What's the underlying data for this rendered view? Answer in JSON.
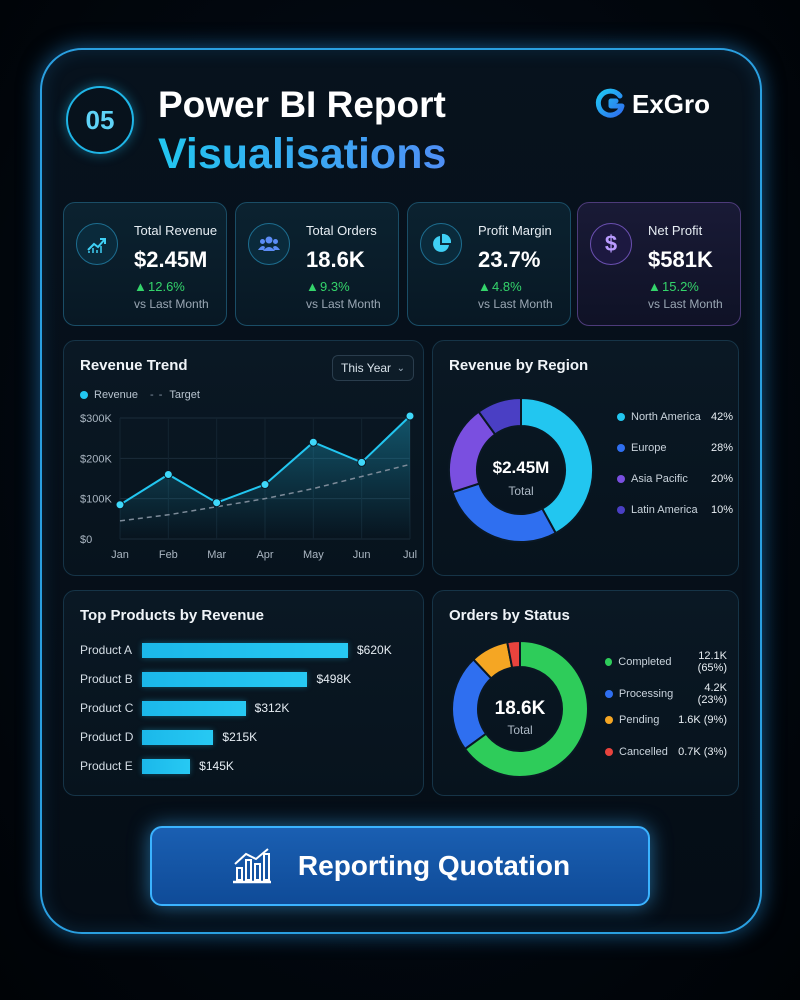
{
  "header": {
    "badge": "05",
    "title_line1": "Power BI Report",
    "title_line2": "Visualisations",
    "brand": "ExGro"
  },
  "kpis": [
    {
      "label": "Total Revenue",
      "value": "$2.45M",
      "delta": "12.6%",
      "sub": "vs Last Month",
      "icon": "trending-up-icon"
    },
    {
      "label": "Total Orders",
      "value": "18.6K",
      "delta": "9.3%",
      "sub": "vs Last Month",
      "icon": "users-icon"
    },
    {
      "label": "Profit Margin",
      "value": "23.7%",
      "delta": "4.8%",
      "sub": "vs Last Month",
      "icon": "pie-chart-icon"
    },
    {
      "label": "Net Profit",
      "value": "$581K",
      "delta": "15.2%",
      "sub": "vs Last Month",
      "icon": "dollar-icon"
    }
  ],
  "revenue_trend": {
    "title": "Revenue Trend",
    "period_select": "This Year",
    "legend_revenue": "Revenue",
    "legend_target": "Target",
    "y_ticks": [
      "$300K",
      "$200K",
      "$100K",
      "$0"
    ],
    "x_ticks": [
      "Jan",
      "Feb",
      "Mar",
      "Apr",
      "May",
      "Jun",
      "Jul"
    ]
  },
  "region": {
    "title": "Revenue by Region",
    "center_value": "$2.45M",
    "center_label": "Total",
    "items": [
      {
        "name": "North America",
        "pct": "42%"
      },
      {
        "name": "Europe",
        "pct": "28%"
      },
      {
        "name": "Asia Pacific",
        "pct": "20%"
      },
      {
        "name": "Latin America",
        "pct": "10%"
      }
    ]
  },
  "top_products": {
    "title": "Top Products by Revenue",
    "items": [
      {
        "name": "Product A",
        "value": "$620K"
      },
      {
        "name": "Product B",
        "value": "$498K"
      },
      {
        "name": "Product C",
        "value": "$312K"
      },
      {
        "name": "Product D",
        "value": "$215K"
      },
      {
        "name": "Product E",
        "value": "$145K"
      }
    ]
  },
  "orders_status": {
    "title": "Orders by Status",
    "center_value": "18.6K",
    "center_label": "Total",
    "items": [
      {
        "name": "Completed",
        "value": "12.1K (65%)"
      },
      {
        "name": "Processing",
        "value": "4.2K (23%)"
      },
      {
        "name": "Pending",
        "value": "1.6K (9%)"
      },
      {
        "name": "Cancelled",
        "value": "0.7K (3%)"
      }
    ]
  },
  "cta": {
    "label": "Reporting Quotation"
  },
  "colors": {
    "cyan": "#22c6f0",
    "blue": "#2f6ff0",
    "purple": "#7a4fe0",
    "indigo": "#4a3fc4",
    "green": "#2ecc5a",
    "orange": "#f5a623",
    "red": "#e8433d",
    "up": "#34d46b"
  },
  "chart_data": [
    {
      "type": "line",
      "title": "Revenue Trend",
      "x": [
        "Jan",
        "Feb",
        "Mar",
        "Apr",
        "May",
        "Jun",
        "Jul"
      ],
      "ylim": [
        0,
        300000
      ],
      "series": [
        {
          "name": "Revenue",
          "values": [
            85000,
            160000,
            90000,
            135000,
            240000,
            190000,
            305000
          ]
        },
        {
          "name": "Target",
          "values": [
            45000,
            60000,
            80000,
            100000,
            125000,
            155000,
            185000
          ]
        }
      ]
    },
    {
      "type": "pie",
      "title": "Revenue by Region",
      "categories": [
        "North America",
        "Europe",
        "Asia Pacific",
        "Latin America"
      ],
      "values": [
        42,
        28,
        20,
        10
      ]
    },
    {
      "type": "bar",
      "title": "Top Products by Revenue",
      "categories": [
        "Product A",
        "Product B",
        "Product C",
        "Product D",
        "Product E"
      ],
      "values": [
        620,
        498,
        312,
        215,
        145
      ]
    },
    {
      "type": "pie",
      "title": "Orders by Status",
      "categories": [
        "Completed",
        "Processing",
        "Pending",
        "Cancelled"
      ],
      "values": [
        65,
        23,
        9,
        3
      ]
    }
  ]
}
